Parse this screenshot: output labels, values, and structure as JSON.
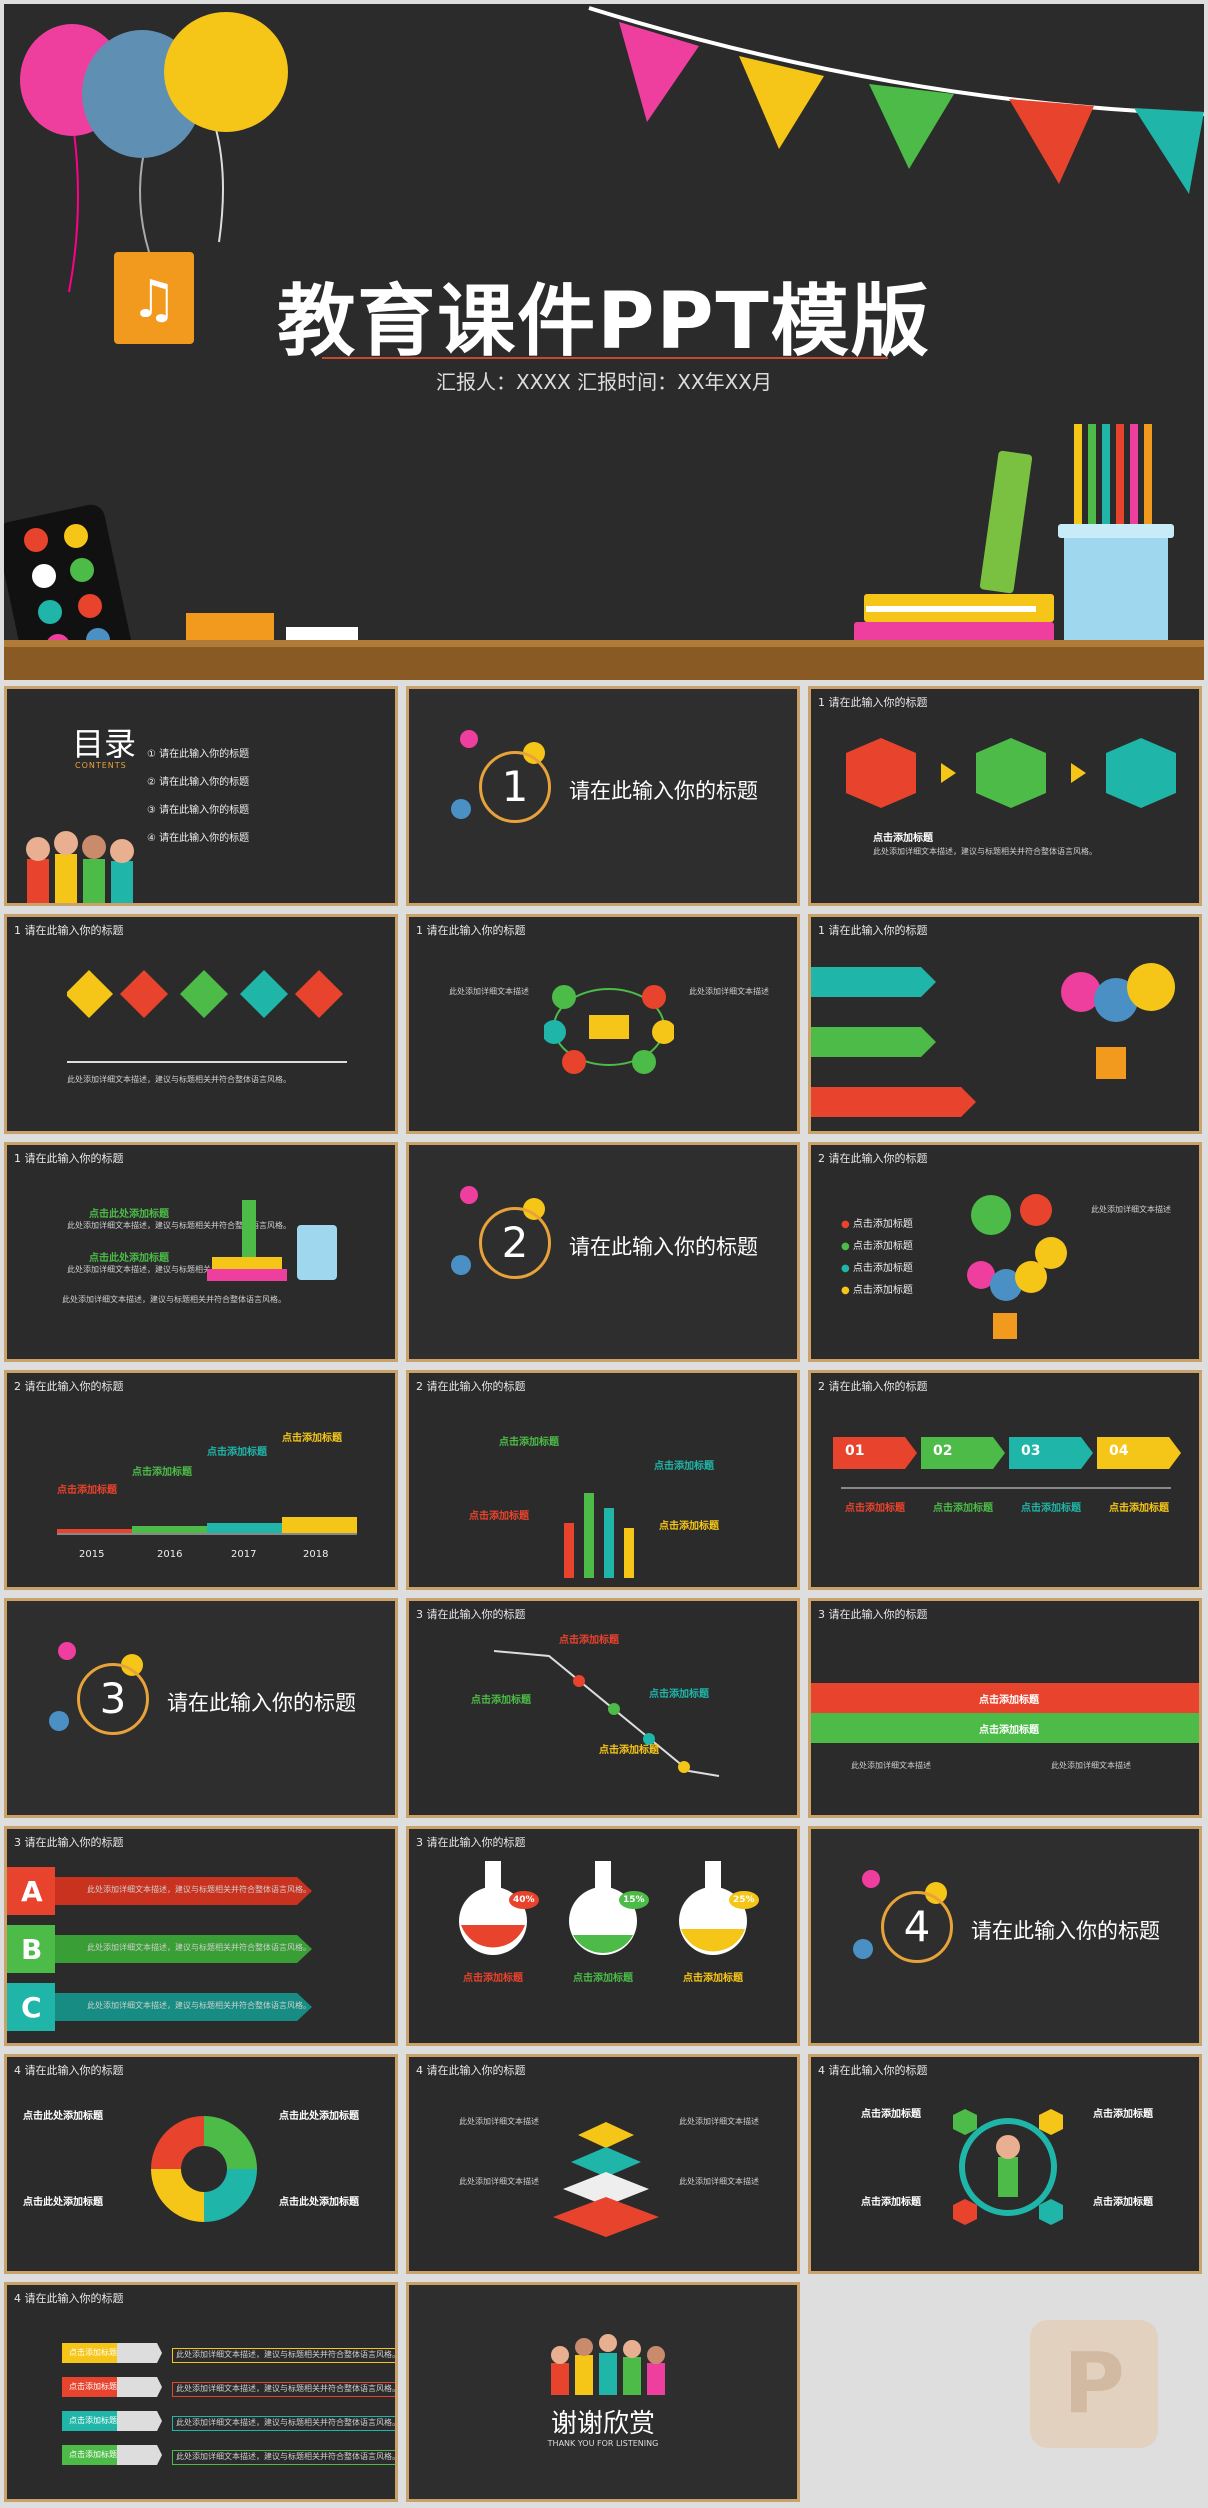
{
  "cover": {
    "title": "教育课件PPT模版",
    "subtitle": "汇报人：XXXX 汇报时间：XX年XX月"
  },
  "slide_header": "请在此输入你的标题",
  "toc": {
    "title": "目录",
    "subtitle": "CONTENTS",
    "items": [
      "请在此输入你的标题",
      "请在此输入你的标题",
      "请在此输入你的标题",
      "请在此输入你的标题"
    ]
  },
  "section": {
    "title": "请在此输入你的标题",
    "numbers": [
      "1",
      "2",
      "3",
      "4"
    ]
  },
  "click_title": "点击添加标题",
  "click_title_here": "点击此处添加标题",
  "body_text": "此处添加详细文本描述，建议与标题相关并符合整体语言风格。",
  "body_short": "此处添加详细文本描述",
  "years": [
    "2015",
    "2016",
    "2017",
    "2018"
  ],
  "arrow_labels": [
    "01",
    "02",
    "03",
    "04"
  ],
  "letters": [
    "A",
    "B",
    "C"
  ],
  "percents": [
    "40%",
    "15%",
    "25%"
  ],
  "timeline_items": [
    "点击添加标题",
    "点击添加标题",
    "点击添加标题",
    "点击添加标题"
  ],
  "thanks": {
    "title": "谢谢欣赏",
    "subtitle": "THANK YOU FOR LISTENING"
  },
  "colors": {
    "background": "#2b2b2b",
    "border": "#c9a26b",
    "red": "#e8432c",
    "yellow": "#f5c518",
    "green": "#4cbb47",
    "teal": "#1fb5a8",
    "pink": "#ee3e9e",
    "blue": "#4a90c4"
  }
}
